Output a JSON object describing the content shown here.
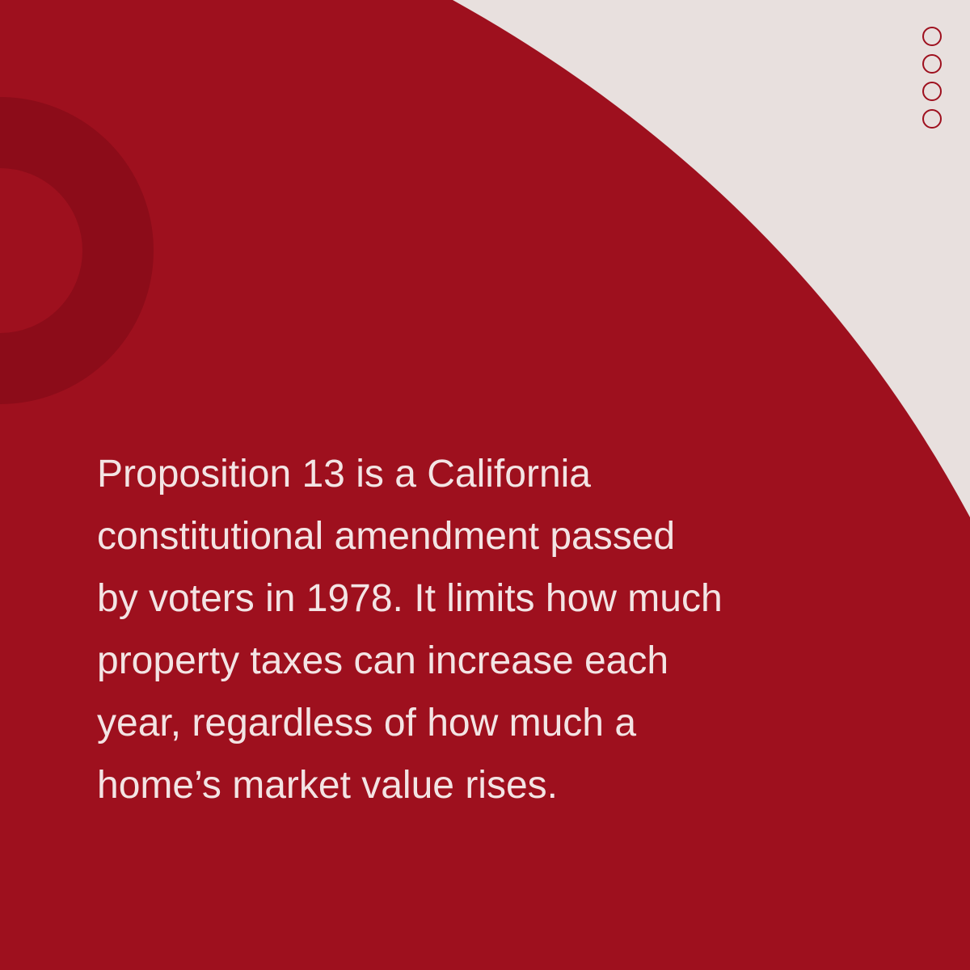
{
  "colors": {
    "primary_red": "#9e101e",
    "ring_red": "#8c0c19",
    "background_light": "#e8e0de",
    "text_light": "#f3e4e4"
  },
  "decor": {
    "dot_icon": "circle-outline-icon",
    "dot_count": 4
  },
  "content": {
    "lines": [
      "Proposition 13 is a California",
      "constitutional amendment passed",
      "by voters in 1978. It limits how much",
      "property taxes can increase each",
      "year, regardless of how much a",
      "home’s market value rises."
    ]
  }
}
